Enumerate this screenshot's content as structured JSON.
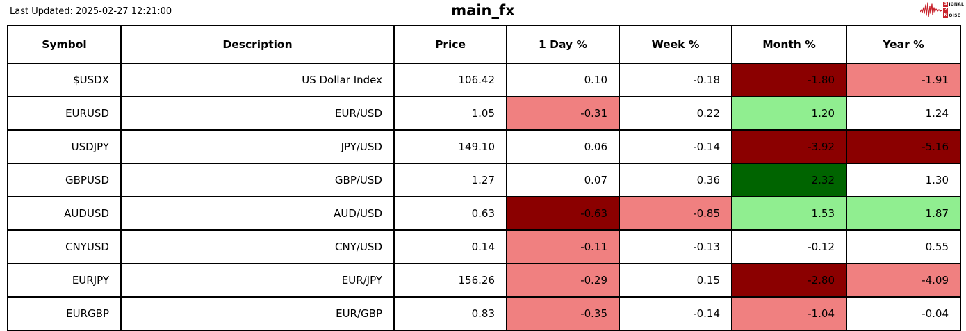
{
  "header": {
    "last_updated": "Last Updated: 2025-02-27 12:21:00",
    "title": "main_fx"
  },
  "logo": {
    "words": [
      {
        "boxed": "S",
        "rest": "IGNAL"
      },
      {
        "boxed": "2",
        "rest": ""
      },
      {
        "boxed": "N",
        "rest": "OISE"
      }
    ],
    "accent_color": "#c8232c"
  },
  "palette": {
    "strong_negative": "#8b0000",
    "mild_negative": "#f08080",
    "mild_positive": "#90ee90",
    "strong_positive": "#006400",
    "neutral": "#ffffff",
    "border": "#000000"
  },
  "chart_data": {
    "type": "table",
    "title": "main_fx",
    "columns": [
      "Symbol",
      "Description",
      "Price",
      "1 Day %",
      "Week %",
      "Month %",
      "Year %"
    ],
    "rows": [
      {
        "symbol": "$USDX",
        "description": "US Dollar Index",
        "price": "106.42",
        "day": {
          "text": "0.10",
          "bg": "#ffffff"
        },
        "week": {
          "text": "-0.18",
          "bg": "#ffffff"
        },
        "month": {
          "text": "-1.80",
          "bg": "#8b0000"
        },
        "year": {
          "text": "-1.91",
          "bg": "#f08080"
        }
      },
      {
        "symbol": "EURUSD",
        "description": "EUR/USD",
        "price": "1.05",
        "day": {
          "text": "-0.31",
          "bg": "#f08080"
        },
        "week": {
          "text": "0.22",
          "bg": "#ffffff"
        },
        "month": {
          "text": "1.20",
          "bg": "#90ee90"
        },
        "year": {
          "text": "1.24",
          "bg": "#ffffff"
        }
      },
      {
        "symbol": "USDJPY",
        "description": "JPY/USD",
        "price": "149.10",
        "day": {
          "text": "0.06",
          "bg": "#ffffff"
        },
        "week": {
          "text": "-0.14",
          "bg": "#ffffff"
        },
        "month": {
          "text": "-3.92",
          "bg": "#8b0000"
        },
        "year": {
          "text": "-5.16",
          "bg": "#8b0000"
        }
      },
      {
        "symbol": "GBPUSD",
        "description": "GBP/USD",
        "price": "1.27",
        "day": {
          "text": "0.07",
          "bg": "#ffffff"
        },
        "week": {
          "text": "0.36",
          "bg": "#ffffff"
        },
        "month": {
          "text": "2.32",
          "bg": "#006400"
        },
        "year": {
          "text": "1.30",
          "bg": "#ffffff"
        }
      },
      {
        "symbol": "AUDUSD",
        "description": "AUD/USD",
        "price": "0.63",
        "day": {
          "text": "-0.63",
          "bg": "#8b0000"
        },
        "week": {
          "text": "-0.85",
          "bg": "#f08080"
        },
        "month": {
          "text": "1.53",
          "bg": "#90ee90"
        },
        "year": {
          "text": "1.87",
          "bg": "#90ee90"
        }
      },
      {
        "symbol": "CNYUSD",
        "description": "CNY/USD",
        "price": "0.14",
        "day": {
          "text": "-0.11",
          "bg": "#f08080"
        },
        "week": {
          "text": "-0.13",
          "bg": "#ffffff"
        },
        "month": {
          "text": "-0.12",
          "bg": "#ffffff"
        },
        "year": {
          "text": "0.55",
          "bg": "#ffffff"
        }
      },
      {
        "symbol": "EURJPY",
        "description": "EUR/JPY",
        "price": "156.26",
        "day": {
          "text": "-0.29",
          "bg": "#f08080"
        },
        "week": {
          "text": "0.15",
          "bg": "#ffffff"
        },
        "month": {
          "text": "-2.80",
          "bg": "#8b0000"
        },
        "year": {
          "text": "-4.09",
          "bg": "#f08080"
        }
      },
      {
        "symbol": "EURGBP",
        "description": "EUR/GBP",
        "price": "0.83",
        "day": {
          "text": "-0.35",
          "bg": "#f08080"
        },
        "week": {
          "text": "-0.14",
          "bg": "#ffffff"
        },
        "month": {
          "text": "-1.04",
          "bg": "#f08080"
        },
        "year": {
          "text": "-0.04",
          "bg": "#ffffff"
        }
      }
    ]
  }
}
